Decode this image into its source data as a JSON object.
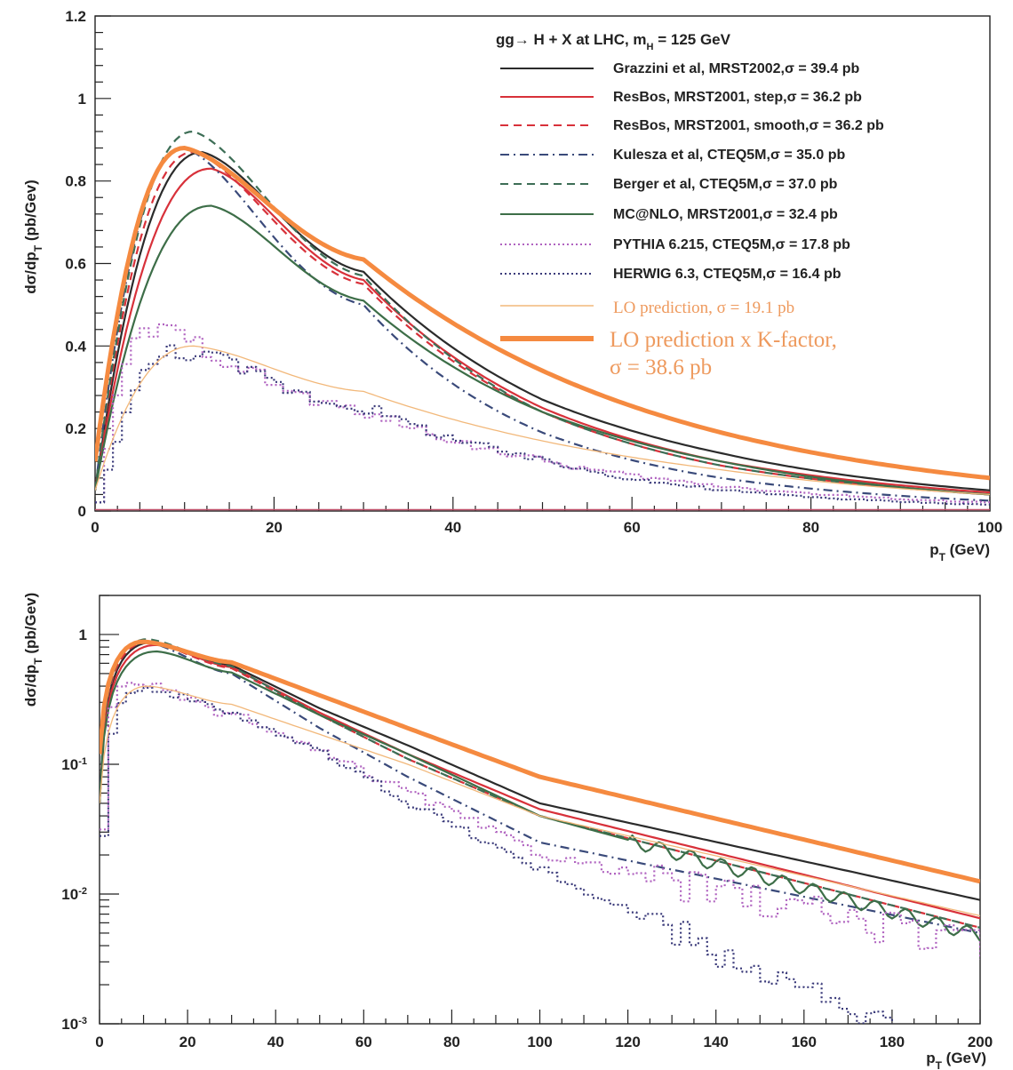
{
  "chart_data": [
    {
      "type": "line",
      "panel": "top",
      "title": "gg→ H + X at LHC, m_H = 125 GeV",
      "title_main": "gg→ H + X at LHC, m",
      "title_sub": "H",
      "title_tail": " = 125 GeV",
      "xlabel": "p_T (GeV)",
      "xlabel_main": "p",
      "xlabel_sub": "T",
      "xlabel_tail": " (GeV)",
      "ylabel": "dσ/dp_T (pb/Gev)",
      "ylabel_main": "dσ/dp",
      "ylabel_sub": "T",
      "ylabel_tail": " (pb/Gev)",
      "xlim": [
        0,
        100
      ],
      "ylim": [
        0,
        1.2
      ],
      "yscale": "linear",
      "xticks": [
        "0",
        "20",
        "40",
        "60",
        "80",
        "100"
      ],
      "yticks": [
        "0",
        "0.2",
        "0.4",
        "0.6",
        "0.8",
        "1",
        "1.2"
      ],
      "legend_position": "top-right",
      "series": [
        {
          "name": "Grazzini et al, MRST2002,σ = 39.4 pb",
          "color": "#2b2b2b",
          "style": "solid",
          "width": "normal",
          "peak_x": 12,
          "peak_y": 0.87,
          "tail": [
            [
              30,
              0.58
            ],
            [
              50,
              0.27
            ],
            [
              70,
              0.14
            ],
            [
              100,
              0.05
            ]
          ]
        },
        {
          "name": "ResBos, MRST2001, step,σ = 36.2 pb",
          "color": "#d8313a",
          "style": "solid",
          "width": "normal",
          "peak_x": 13,
          "peak_y": 0.83,
          "tail": [
            [
              30,
              0.56
            ],
            [
              50,
              0.25
            ],
            [
              70,
              0.12
            ],
            [
              100,
              0.045
            ]
          ]
        },
        {
          "name": "ResBos, MRST2001, smooth,σ = 36.2 pb",
          "color": "#d8313a",
          "style": "dashed",
          "width": "normal",
          "peak_x": 11,
          "peak_y": 0.87,
          "tail": [
            [
              30,
              0.55
            ],
            [
              50,
              0.24
            ],
            [
              70,
              0.11
            ],
            [
              100,
              0.04
            ]
          ]
        },
        {
          "name": "Kulesza et al, CTEQ5M,σ = 35.0 pb",
          "color": "#3a4a7a",
          "style": "dashdot",
          "width": "normal",
          "peak_x": 10,
          "peak_y": 0.88,
          "tail": [
            [
              30,
              0.5
            ],
            [
              50,
              0.19
            ],
            [
              70,
              0.08
            ],
            [
              100,
              0.025
            ]
          ]
        },
        {
          "name": "Berger et al, CTEQ5M,σ = 37.0 pb",
          "color": "#3d6e56",
          "style": "dashed",
          "width": "normal",
          "peak_x": 11,
          "peak_y": 0.92,
          "tail": [
            [
              30,
              0.57
            ],
            [
              50,
              0.24
            ],
            [
              70,
              0.11
            ],
            [
              100,
              0.04
            ]
          ]
        },
        {
          "name": "MC@NLO, MRST2001,σ = 32.4 pb",
          "color": "#3d6e48",
          "style": "solid",
          "width": "normal",
          "peak_x": 13,
          "peak_y": 0.74,
          "tail": [
            [
              30,
              0.51
            ],
            [
              50,
              0.24
            ],
            [
              70,
              0.12
            ],
            [
              100,
              0.04
            ]
          ]
        },
        {
          "name": "PYTHIA 6.215, CTEQ5M,σ = 17.8 pb",
          "color": "#b063c0",
          "style": "dotted",
          "width": "normal",
          "peak_x": 6,
          "peak_y": 0.44,
          "tail": [
            [
              30,
              0.24
            ],
            [
              50,
              0.12
            ],
            [
              70,
              0.06
            ],
            [
              100,
              0.02
            ]
          ]
        },
        {
          "name": "HERWIG 6.3, CTEQ5M,σ = 16.4 pb",
          "color": "#3a3a7a",
          "style": "dotted",
          "width": "normal",
          "peak_x": 9,
          "peak_y": 0.39,
          "tail": [
            [
              30,
              0.25
            ],
            [
              50,
              0.12
            ],
            [
              70,
              0.05
            ],
            [
              100,
              0.015
            ]
          ]
        },
        {
          "name": "LO prediction, σ = 19.1 pb",
          "color": "#f2b87a",
          "style": "solid",
          "width": "thin",
          "peak_x": 11,
          "peak_y": 0.4,
          "tail": [
            [
              30,
              0.29
            ],
            [
              50,
              0.17
            ],
            [
              70,
              0.1
            ],
            [
              100,
              0.04
            ]
          ]
        },
        {
          "name": "LO prediction x K-factor, σ = 38.6 pb",
          "color": "#f58a40",
          "style": "solid",
          "width": "thick",
          "peak_x": 10,
          "peak_y": 0.88,
          "tail": [
            [
              30,
              0.61
            ],
            [
              50,
              0.34
            ],
            [
              70,
              0.19
            ],
            [
              100,
              0.08
            ]
          ]
        }
      ],
      "legend_lines": [
        "Grazzini et al, MRST2002,σ = 39.4 pb",
        "ResBos, MRST2001, step,σ = 36.2 pb",
        "ResBos, MRST2001, smooth,σ = 36.2 pb",
        "Kulesza et al, CTEQ5M,σ = 35.0 pb",
        "Berger et al, CTEQ5M,σ = 37.0 pb",
        "MC@NLO, MRST2001,σ = 32.4 pb",
        "PYTHIA 6.215, CTEQ5M,σ = 17.8 pb",
        "HERWIG 6.3, CTEQ5M,σ = 16.4 pb",
        "LO prediction, σ = 19.1 pb",
        "LO prediction x K-factor,",
        "σ = 38.6 pb"
      ]
    },
    {
      "type": "line",
      "panel": "bottom",
      "xlabel": "p_T (GeV)",
      "xlabel_main": "p",
      "xlabel_sub": "T",
      "xlabel_tail": " (GeV)",
      "ylabel": "dσ/dp_T (pb/Gev)",
      "ylabel_main": "dσ/dp",
      "ylabel_sub": "T",
      "ylabel_tail": " (pb/Gev)",
      "xlim": [
        0,
        200
      ],
      "ylim": [
        0.001,
        2
      ],
      "yscale": "log",
      "xticks": [
        "0",
        "20",
        "40",
        "60",
        "80",
        "100",
        "120",
        "140",
        "160",
        "180",
        "200"
      ],
      "yticks": [
        {
          "base": "10",
          "exp": "-3",
          "value": 0.001
        },
        {
          "base": "10",
          "exp": "-2",
          "value": 0.01
        },
        {
          "base": "10",
          "exp": "-1",
          "value": 0.1
        },
        {
          "base": "1",
          "exp": "",
          "value": 1
        }
      ],
      "series_endpoints": [
        {
          "color": "#2b2b2b",
          "style": "solid",
          "width": "normal",
          "end_y": 0.009
        },
        {
          "color": "#d8313a",
          "style": "solid",
          "width": "normal",
          "end_y": 0.0065
        },
        {
          "color": "#d8313a",
          "style": "dashed",
          "width": "normal",
          "end_y": 0.0055
        },
        {
          "color": "#3a4a7a",
          "style": "dashdot",
          "width": "normal",
          "end_y": 0.005
        },
        {
          "color": "#3d6e56",
          "style": "dashed",
          "width": "normal",
          "end_y": 0.0055
        },
        {
          "color": "#3d6e48",
          "style": "solid",
          "width": "normal",
          "end_y": 0.0048
        },
        {
          "color": "#b063c0",
          "style": "dotted",
          "width": "normal",
          "end_y": 0.004
        },
        {
          "color": "#3a3a7a",
          "style": "dotted",
          "width": "normal",
          "end_y": 0.0004
        },
        {
          "color": "#f2b87a",
          "style": "solid",
          "width": "thin",
          "end_y": 0.0068
        },
        {
          "color": "#f58a40",
          "style": "solid",
          "width": "thick",
          "end_y": 0.0125
        }
      ]
    }
  ]
}
